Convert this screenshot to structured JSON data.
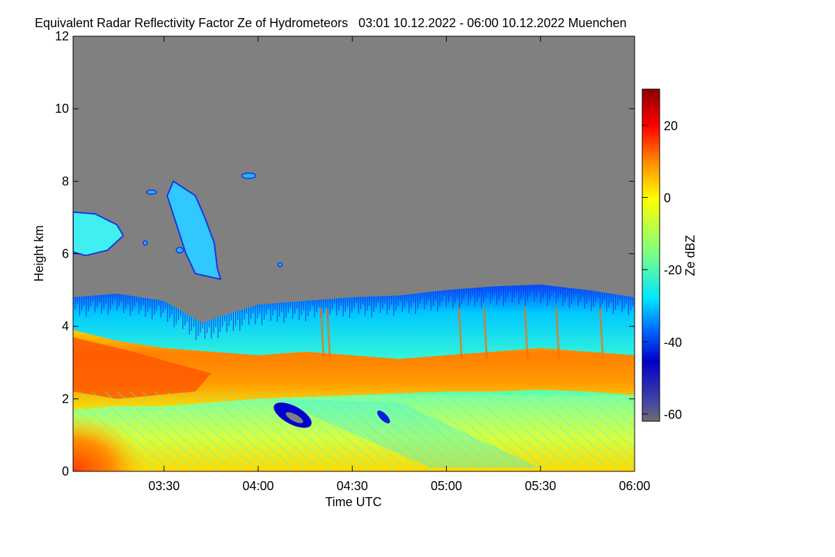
{
  "chart_data": {
    "type": "heatmap",
    "title": "Equivalent Radar Reflectivity Factor Ze of Hydrometeors   03:01 10.12.2022 - 06:00 10.12.2022 Muenchen",
    "xlabel": "Time UTC",
    "ylabel": "Height km",
    "colorbar_label": "Ze dBZ",
    "x_ticks": [
      "03:30",
      "04:00",
      "04:30",
      "05:00",
      "05:30",
      "06:00"
    ],
    "y_ticks": [
      0,
      2,
      4,
      6,
      8,
      10,
      12
    ],
    "colorbar_ticks": [
      20,
      0,
      -20,
      -40,
      -60
    ],
    "xlim": [
      "03:01",
      "06:00"
    ],
    "ylim": [
      0,
      12
    ],
    "colorbar_range": [
      -62,
      30
    ],
    "no_data_color": "#808080",
    "colormap": [
      "#6e6e6e",
      "#0000c8",
      "#0064ff",
      "#00e6ff",
      "#80ff80",
      "#ffff00",
      "#ff8c00",
      "#ff0000",
      "#8b0000"
    ],
    "cloud_top_profile_km": [
      [
        "03:01",
        4.8
      ],
      [
        "03:15",
        4.9
      ],
      [
        "03:30",
        4.7
      ],
      [
        "03:42",
        4.1
      ],
      [
        "04:00",
        4.6
      ],
      [
        "04:15",
        4.7
      ],
      [
        "04:30",
        4.8
      ],
      [
        "04:45",
        4.85
      ],
      [
        "05:00",
        5.0
      ],
      [
        "05:15",
        5.1
      ],
      [
        "05:30",
        5.15
      ],
      [
        "05:45",
        5.0
      ],
      [
        "06:00",
        4.8
      ]
    ],
    "features": [
      {
        "name": "high cloud patch",
        "time_range": [
          "03:01",
          "03:17"
        ],
        "height_range_km": [
          6.0,
          7.2
        ],
        "ze_dbz": -28
      },
      {
        "name": "high cloud fallstreak",
        "time_range": [
          "03:32",
          "03:48"
        ],
        "height_range_km": [
          5.3,
          8.0
        ],
        "ze_dbz": -28
      },
      {
        "name": "melting layer / bright band",
        "time_range": [
          "03:01",
          "06:00"
        ],
        "height_range_km": [
          2.0,
          3.8
        ],
        "ze_dbz": 10
      },
      {
        "name": "weak echo pocket",
        "time_range": [
          "04:05",
          "04:18"
        ],
        "height_range_km": [
          1.2,
          1.9
        ],
        "ze_dbz": -42
      },
      {
        "name": "near-surface rain",
        "time_range": [
          "03:01",
          "03:20"
        ],
        "height_range_km": [
          0.0,
          1.3
        ],
        "ze_dbz": 12
      }
    ]
  }
}
